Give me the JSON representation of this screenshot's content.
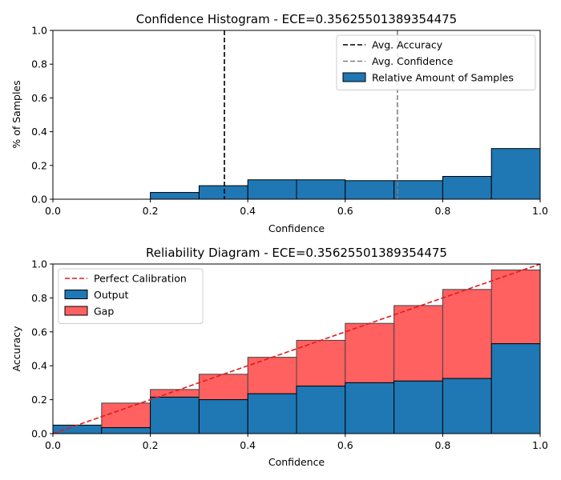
{
  "chart_data": [
    {
      "type": "histogram",
      "title": "Confidence Histogram -  ECE=0.35625501389354475",
      "xlabel": "Confidence",
      "ylabel": "% of Samples",
      "xlim": [
        0.0,
        1.0
      ],
      "ylim": [
        0.0,
        1.0
      ],
      "xticks": [
        "0.0",
        "0.2",
        "0.4",
        "0.6",
        "0.8",
        "1.0"
      ],
      "yticks": [
        "0.0",
        "0.2",
        "0.4",
        "0.6",
        "0.8",
        "1.0"
      ],
      "bin_edges": [
        0.0,
        0.1,
        0.2,
        0.3,
        0.4,
        0.5,
        0.6,
        0.7,
        0.8,
        0.9,
        1.0
      ],
      "series": [
        {
          "name": "Relative Amount of Samples",
          "color": "#1f77b4",
          "values": [
            0.0,
            0.0,
            0.04,
            0.08,
            0.115,
            0.115,
            0.11,
            0.11,
            0.135,
            0.3
          ]
        }
      ],
      "reference_lines": [
        {
          "name": "Avg. Accuracy",
          "x": 0.352,
          "color": "#000000",
          "dash": true
        },
        {
          "name": "Avg. Confidence",
          "x": 0.707,
          "color": "#7f7f7f",
          "dash": true
        }
      ],
      "legend": {
        "placement": "top-right",
        "entries": [
          "Avg. Accuracy",
          "Avg. Confidence",
          "Relative Amount of Samples"
        ]
      }
    },
    {
      "type": "bar",
      "title": "Reliability Diagram -  ECE=0.35625501389354475",
      "xlabel": "Confidence",
      "ylabel": "Accuracy",
      "xlim": [
        0.0,
        1.0
      ],
      "ylim": [
        0.0,
        1.0
      ],
      "xticks": [
        "0.0",
        "0.2",
        "0.4",
        "0.6",
        "0.8",
        "1.0"
      ],
      "yticks": [
        "0.0",
        "0.2",
        "0.4",
        "0.6",
        "0.8",
        "1.0"
      ],
      "bin_edges": [
        0.0,
        0.1,
        0.2,
        0.3,
        0.4,
        0.5,
        0.6,
        0.7,
        0.8,
        0.9,
        1.0
      ],
      "series": [
        {
          "name": "Output",
          "color": "#1f77b4",
          "values": [
            0.05,
            0.035,
            0.215,
            0.2,
            0.235,
            0.28,
            0.3,
            0.31,
            0.325,
            0.53
          ]
        },
        {
          "name": "Gap",
          "color": "#ff6060",
          "tops": [
            0.0,
            0.18,
            0.26,
            0.35,
            0.45,
            0.55,
            0.65,
            0.755,
            0.85,
            0.965
          ]
        }
      ],
      "reference_lines": [
        {
          "name": "Perfect Calibration",
          "from": [
            0.0,
            0.0
          ],
          "to": [
            1.0,
            1.0
          ],
          "color": "#e41a1c",
          "dash": true
        }
      ],
      "legend": {
        "placement": "top-left",
        "entries": [
          "Perfect Calibration",
          "Output",
          "Gap"
        ]
      }
    }
  ]
}
